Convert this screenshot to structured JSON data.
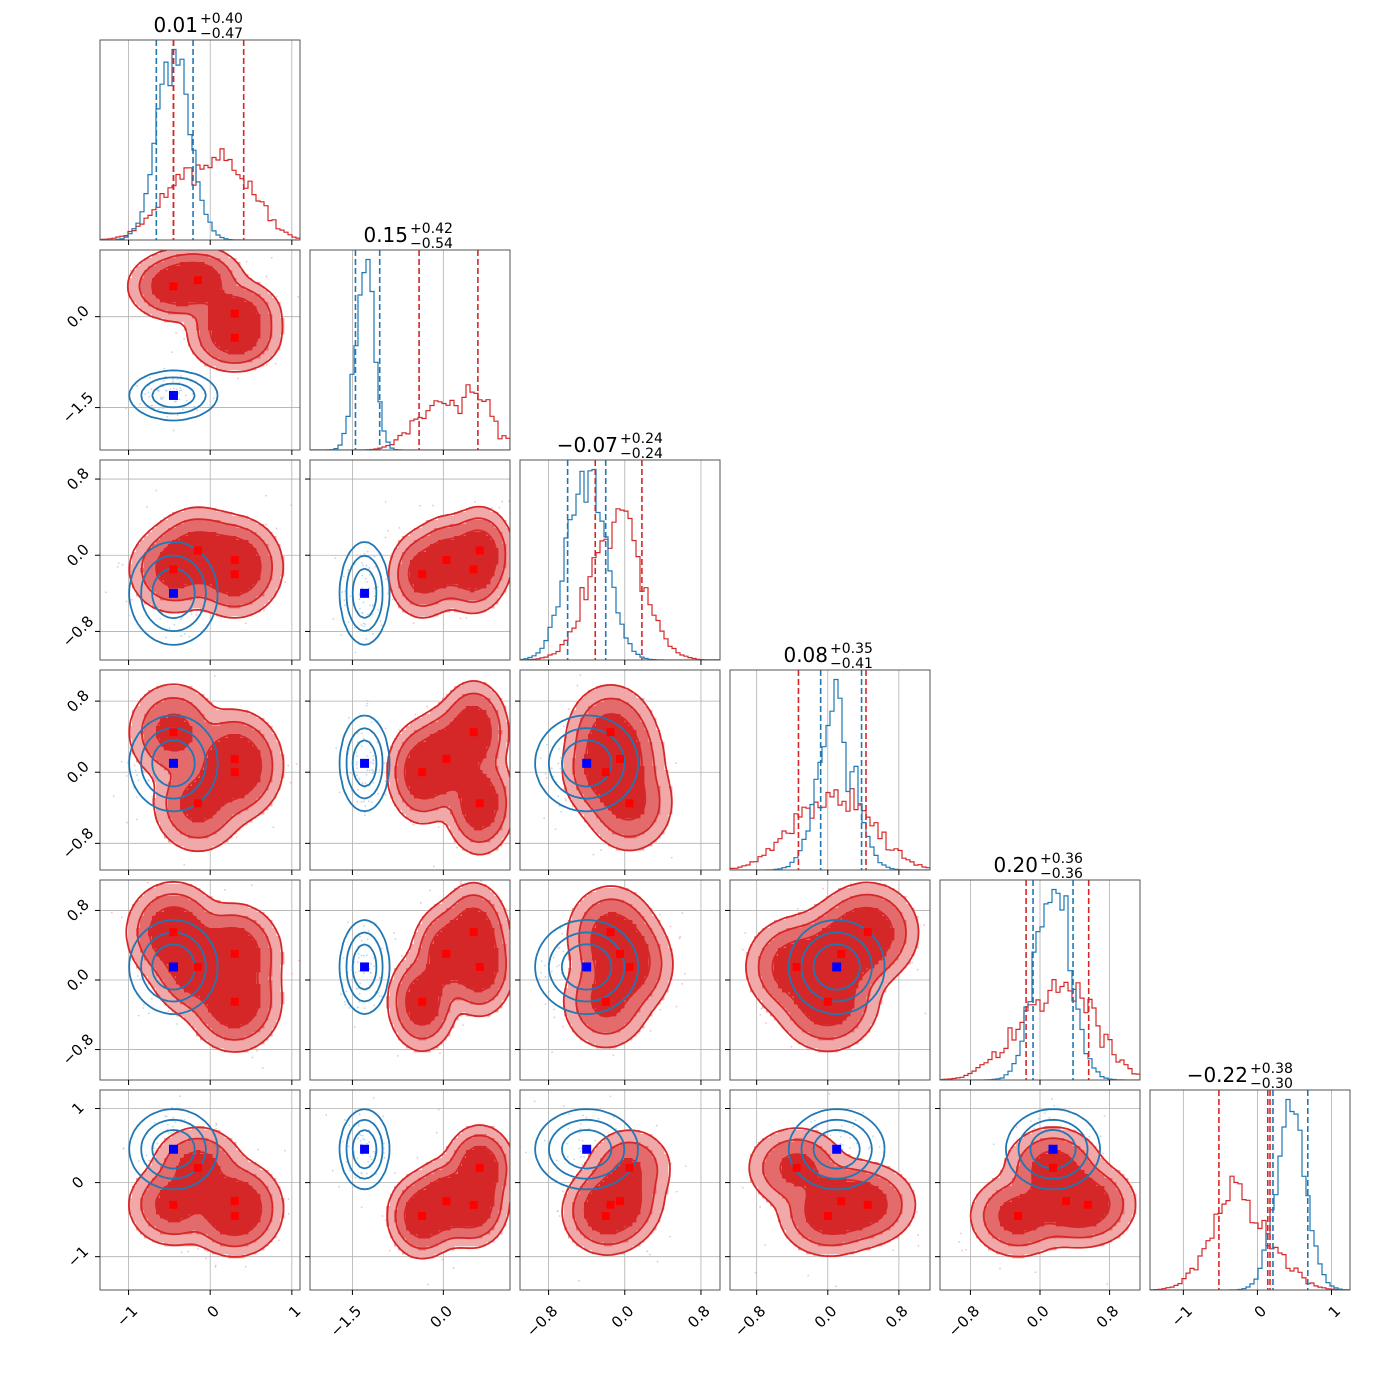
{
  "figure": {
    "type": "corner-plot"
  },
  "chart_data": {
    "type": "corner",
    "colors": {
      "red": "#d62728",
      "blue": "#1f77b4",
      "marker_red": "#ff0000",
      "marker_blue": "#0000ff"
    },
    "titles": [
      {
        "main": "0.01",
        "plus": "+0.40",
        "minus": "−0.47"
      },
      {
        "main": "0.15",
        "plus": "+0.42",
        "minus": "−0.54"
      },
      {
        "main": "−0.07",
        "plus": "+0.24",
        "minus": "−0.24"
      },
      {
        "main": "0.08",
        "plus": "+0.35",
        "minus": "−0.41"
      },
      {
        "main": "0.20",
        "plus": "+0.36",
        "minus": "−0.36"
      },
      {
        "main": "−0.22",
        "plus": "+0.38",
        "minus": "−0.30"
      }
    ],
    "ranges": [
      [
        -1.35,
        1.1
      ],
      [
        -2.2,
        1.1
      ],
      [
        -1.1,
        1.0
      ],
      [
        -1.1,
        1.15
      ],
      [
        -1.15,
        1.15
      ],
      [
        -1.45,
        1.25
      ]
    ],
    "x_ticks": [
      {
        "values": [
          -1,
          0,
          1
        ],
        "labels": [
          "−1",
          "0",
          "1"
        ]
      },
      {
        "values": [
          -1.5,
          0.0
        ],
        "labels": [
          "−1.5",
          "0.0"
        ]
      },
      {
        "values": [
          -0.8,
          0.0,
          0.8
        ],
        "labels": [
          "−0.8",
          "0.0",
          "0.8"
        ]
      },
      {
        "values": [
          -0.8,
          0.0,
          0.8
        ],
        "labels": [
          "−0.8",
          "0.0",
          "0.8"
        ]
      },
      {
        "values": [
          -0.8,
          0.0,
          0.8
        ],
        "labels": [
          "−0.8",
          "0.0",
          "0.8"
        ]
      },
      {
        "values": [
          -1,
          0,
          1
        ],
        "labels": [
          "−1",
          "0",
          "1"
        ]
      }
    ],
    "y_ticks": [
      null,
      {
        "values": [
          0.0,
          -1.5
        ],
        "labels": [
          "0.0",
          "−1.5"
        ]
      },
      {
        "values": [
          0.8,
          0.0,
          -0.8
        ],
        "labels": [
          "0.8",
          "0.0",
          "−0.8"
        ]
      },
      {
        "values": [
          0.8,
          0.0,
          -0.8
        ],
        "labels": [
          "0.8",
          "0.0",
          "−0.8"
        ]
      },
      {
        "values": [
          0.8,
          0.0,
          -0.8
        ],
        "labels": [
          "0.8",
          "0.0",
          "−0.8"
        ]
      },
      {
        "values": [
          1,
          0,
          -1
        ],
        "labels": [
          "1",
          "0",
          "−1"
        ]
      }
    ],
    "red_modes": [
      [
        -0.45,
        0.5,
        -0.15,
        0.45,
        0.55,
        -0.3
      ],
      [
        -0.15,
        0.6,
        0.05,
        -0.35,
        0.15,
        0.2
      ],
      [
        0.3,
        0.05,
        -0.05,
        0.15,
        0.3,
        -0.25
      ],
      [
        0.3,
        -0.35,
        -0.2,
        0.0,
        -0.25,
        -0.45
      ]
    ],
    "blue_center": [
      -0.45,
      -1.3,
      -0.4,
      0.1,
      0.15,
      0.45
    ],
    "blue_sigma": [
      0.2,
      0.15,
      0.2,
      0.2,
      0.2,
      0.2
    ],
    "red_sigma": [
      0.3,
      0.3,
      0.25,
      0.3,
      0.3,
      0.3
    ],
    "quantiles": {
      "red": [
        [
          -0.45,
          0.41
        ],
        [
          -0.4,
          0.57
        ],
        [
          -0.31,
          0.18
        ],
        [
          -0.33,
          0.43
        ],
        [
          -0.16,
          0.56
        ],
        [
          -0.52,
          0.17
        ]
      ],
      "blue": [
        [
          -0.66,
          -0.21
        ],
        [
          -1.45,
          -1.05
        ],
        [
          -0.6,
          -0.2
        ],
        [
          -0.08,
          0.38
        ],
        [
          -0.08,
          0.38
        ],
        [
          0.21,
          0.68
        ]
      ]
    },
    "quantile_mid": {
      "red": [
        null,
        null,
        null,
        null,
        null,
        0.14
      ],
      "blue": [
        -0.45,
        null,
        null,
        null,
        null,
        null
      ]
    }
  }
}
